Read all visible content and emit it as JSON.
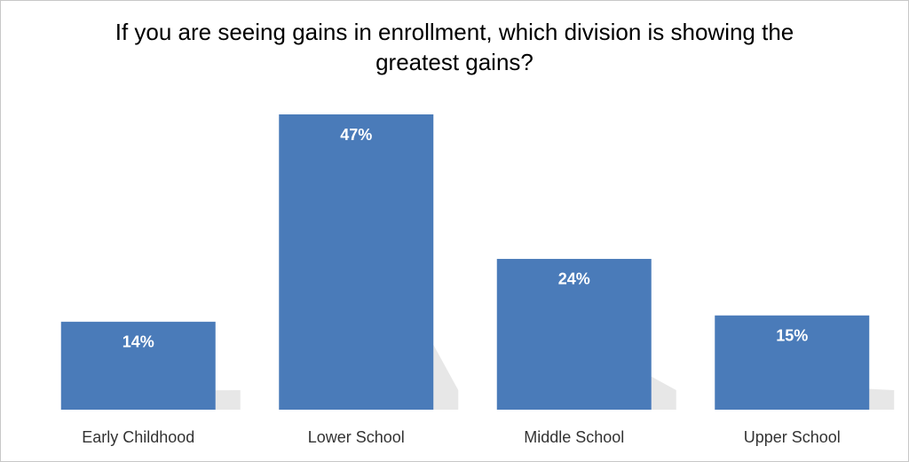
{
  "chart_data": {
    "type": "bar",
    "title": "If you are seeing gains in enrollment, which division is showing the greatest gains?",
    "categories": [
      "Early Childhood",
      "Lower School",
      "Middle School",
      "Upper School"
    ],
    "values": [
      14,
      47,
      24,
      15
    ],
    "value_labels": [
      "14%",
      "47%",
      "24%",
      "15%"
    ],
    "color": "#4a7bb9"
  }
}
